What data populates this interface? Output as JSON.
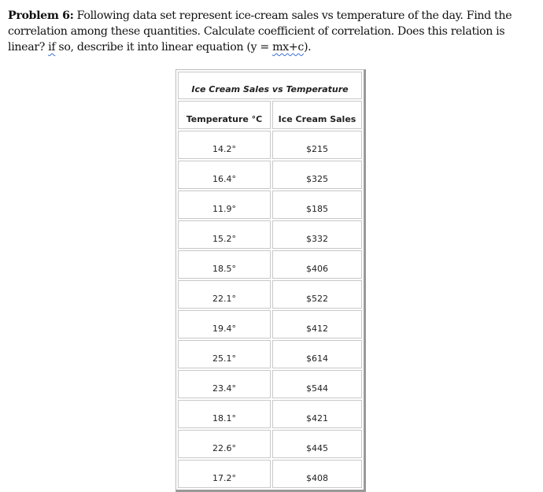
{
  "problem": {
    "label": "Problem 6:",
    "text_1": " Following data set represent ice-cream sales vs temperature of the day. Find the correlation among these quantities. Calculate coefficient of correlation. Does this relation is linear? ",
    "if_word": "if",
    "text_2": " so, describe it into linear equation (y = ",
    "eq_word": "mx+c",
    "text_3": ")."
  },
  "table": {
    "caption": "Ice Cream Sales vs Temperature",
    "headers": [
      "Temperature °C",
      "Ice Cream Sales"
    ],
    "rows": [
      [
        "14.2°",
        "$215"
      ],
      [
        "16.4°",
        "$325"
      ],
      [
        "11.9°",
        "$185"
      ],
      [
        "15.2°",
        "$332"
      ],
      [
        "18.5°",
        "$406"
      ],
      [
        "22.1°",
        "$522"
      ],
      [
        "19.4°",
        "$412"
      ],
      [
        "25.1°",
        "$614"
      ],
      [
        "23.4°",
        "$544"
      ],
      [
        "18.1°",
        "$421"
      ],
      [
        "22.6°",
        "$445"
      ],
      [
        "17.2°",
        "$408"
      ]
    ]
  }
}
